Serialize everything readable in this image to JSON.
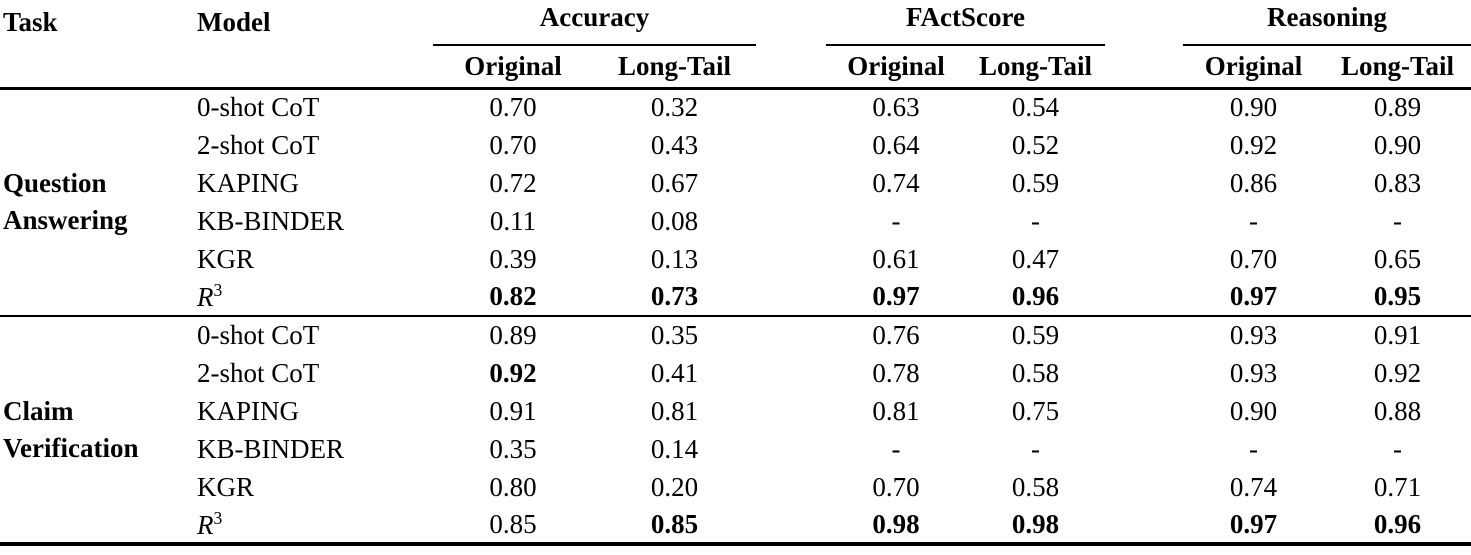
{
  "table": {
    "headers": {
      "task": "Task",
      "model": "Model",
      "groups": [
        {
          "label": "Accuracy",
          "sub": [
            "Original",
            "Long-Tail"
          ]
        },
        {
          "label": "FActScore",
          "sub": [
            "Original",
            "Long-Tail"
          ]
        },
        {
          "label": "Reasoning",
          "sub": [
            "Original",
            "Long-Tail"
          ]
        }
      ]
    },
    "sections": [
      {
        "task_lines": [
          "Question",
          "Answering"
        ],
        "rows": [
          {
            "model": "0-shot CoT",
            "values": [
              "0.70",
              "0.32",
              "0.63",
              "0.54",
              "0.90",
              "0.89"
            ],
            "bold": [
              0,
              0,
              0,
              0,
              0,
              0
            ]
          },
          {
            "model": "2-shot CoT",
            "values": [
              "0.70",
              "0.43",
              "0.64",
              "0.52",
              "0.92",
              "0.90"
            ],
            "bold": [
              0,
              0,
              0,
              0,
              0,
              0
            ]
          },
          {
            "model": "KAPING",
            "values": [
              "0.72",
              "0.67",
              "0.74",
              "0.59",
              "0.86",
              "0.83"
            ],
            "bold": [
              0,
              0,
              0,
              0,
              0,
              0
            ]
          },
          {
            "model": "KB-BINDER",
            "values": [
              "0.11",
              "0.08",
              "-",
              "-",
              "-",
              "-"
            ],
            "bold": [
              0,
              0,
              0,
              0,
              0,
              0
            ]
          },
          {
            "model": "KGR",
            "values": [
              "0.39",
              "0.13",
              "0.61",
              "0.47",
              "0.70",
              "0.65"
            ],
            "bold": [
              0,
              0,
              0,
              0,
              0,
              0
            ]
          },
          {
            "model": "R^3",
            "values": [
              "0.82",
              "0.73",
              "0.97",
              "0.96",
              "0.97",
              "0.95"
            ],
            "bold": [
              1,
              1,
              1,
              1,
              1,
              1
            ]
          }
        ]
      },
      {
        "task_lines": [
          "Claim",
          "Verification"
        ],
        "rows": [
          {
            "model": "0-shot CoT",
            "values": [
              "0.89",
              "0.35",
              "0.76",
              "0.59",
              "0.93",
              "0.91"
            ],
            "bold": [
              0,
              0,
              0,
              0,
              0,
              0
            ]
          },
          {
            "model": "2-shot CoT",
            "values": [
              "0.92",
              "0.41",
              "0.78",
              "0.58",
              "0.93",
              "0.92"
            ],
            "bold": [
              1,
              0,
              0,
              0,
              0,
              0
            ]
          },
          {
            "model": "KAPING",
            "values": [
              "0.91",
              "0.81",
              "0.81",
              "0.75",
              "0.90",
              "0.88"
            ],
            "bold": [
              0,
              0,
              0,
              0,
              0,
              0
            ]
          },
          {
            "model": "KB-BINDER",
            "values": [
              "0.35",
              "0.14",
              "-",
              "-",
              "-",
              "-"
            ],
            "bold": [
              0,
              0,
              0,
              0,
              0,
              0
            ]
          },
          {
            "model": "KGR",
            "values": [
              "0.80",
              "0.20",
              "0.70",
              "0.58",
              "0.74",
              "0.71"
            ],
            "bold": [
              0,
              0,
              0,
              0,
              0,
              0
            ]
          },
          {
            "model": "R^3",
            "values": [
              "0.85",
              "0.85",
              "0.98",
              "0.98",
              "0.97",
              "0.96"
            ],
            "bold": [
              0,
              1,
              1,
              1,
              1,
              1
            ]
          }
        ]
      }
    ]
  }
}
